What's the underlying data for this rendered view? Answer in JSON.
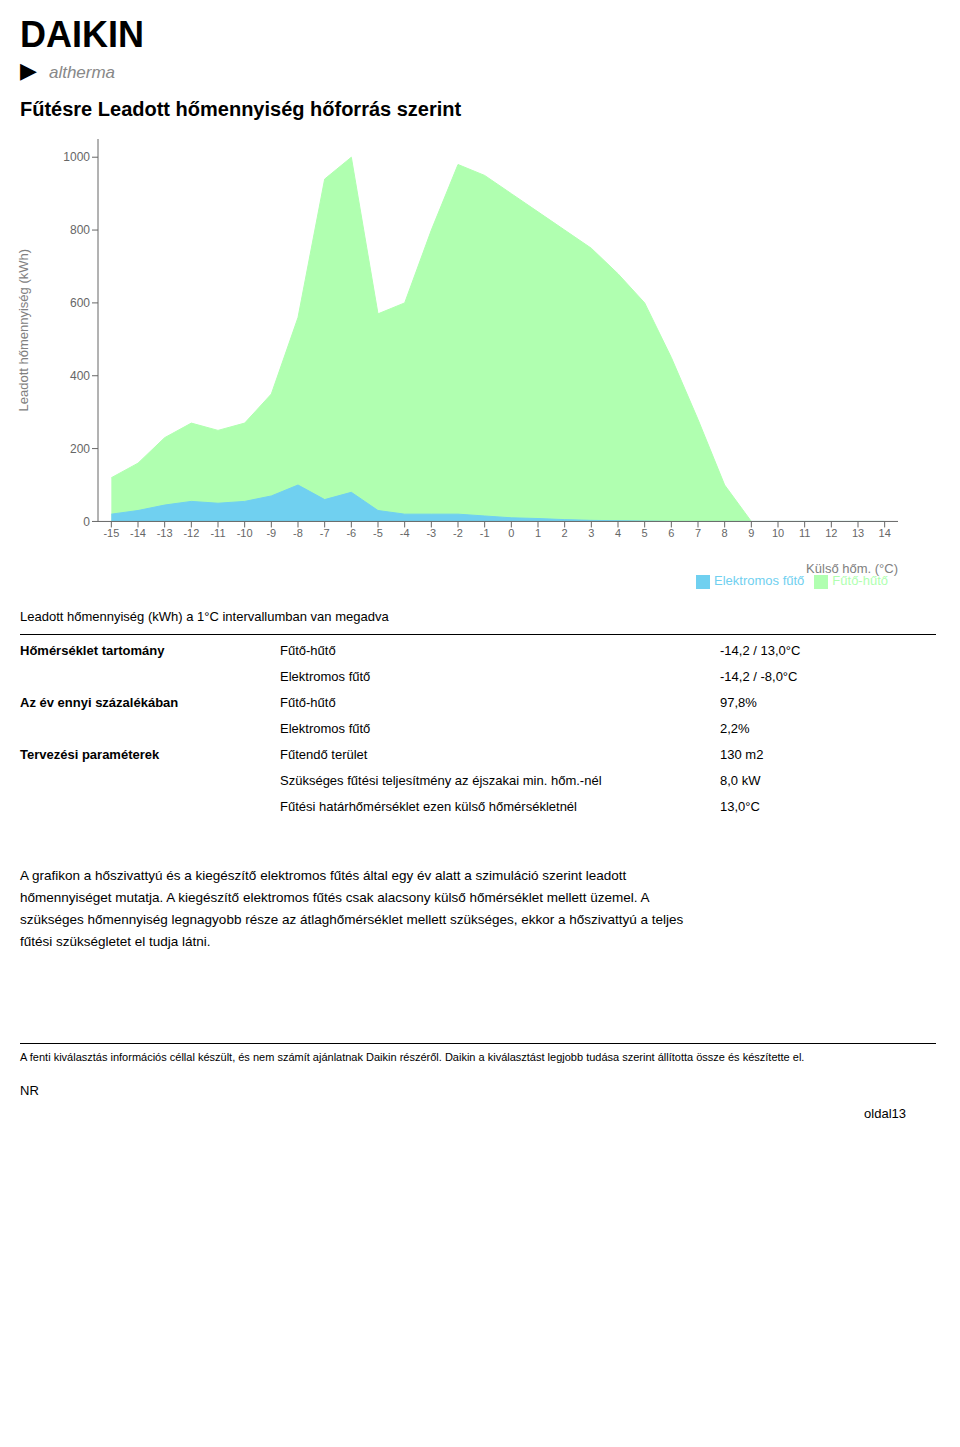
{
  "header": [
    "DAIKIN",
    "▶",
    "altherma"
  ],
  "chart_data": {
    "type": "area",
    "title": "Fűtésre Leadott hőmennyiség hőforrás szerint",
    "xlabel": "Külső hőm. (°C)",
    "ylabel": "Leadott hőmennyiség (kWh)",
    "x": [
      -15,
      -14,
      -13,
      -12,
      -11,
      -10,
      -9,
      -8,
      -7,
      -6,
      -5,
      -4,
      -3,
      -2,
      -1,
      0,
      1,
      2,
      3,
      4,
      5,
      6,
      7,
      8,
      9,
      10,
      11,
      12,
      13,
      14
    ],
    "series": [
      {
        "name": "Fűtő-hűtő",
        "color": "#b0ffb0",
        "values": [
          120,
          160,
          230,
          270,
          250,
          270,
          350,
          560,
          940,
          1000,
          570,
          600,
          800,
          980,
          950,
          900,
          850,
          800,
          750,
          680,
          600,
          450,
          280,
          100,
          0,
          0,
          0,
          0,
          0,
          0
        ]
      },
      {
        "name": "Elektromos fűtő",
        "color": "#70d0f0",
        "values": [
          20,
          30,
          45,
          55,
          50,
          55,
          70,
          100,
          60,
          80,
          30,
          20,
          20,
          20,
          15,
          10,
          8,
          5,
          3,
          2,
          1,
          0,
          0,
          0,
          0,
          0,
          0,
          0,
          0,
          0
        ]
      }
    ],
    "xlim": [
      -15.5,
      14.5
    ],
    "xticks": [
      -15,
      -14,
      -13,
      -12,
      -11,
      -10,
      -9,
      -8,
      -7,
      -6,
      -5,
      -4,
      -3,
      -2,
      -1,
      0,
      1,
      2,
      3,
      4,
      5,
      6,
      7,
      8,
      9,
      10,
      11,
      12,
      13,
      14
    ],
    "ylim": [
      0,
      1050
    ],
    "yticks": [
      0,
      200,
      400,
      600,
      800,
      1000
    ],
    "grid": false,
    "stacked": false,
    "legend": "lower right"
  },
  "note": "Leadott hőmennyiség (kWh) a 1°C intervallumban van megadva",
  "table": [
    [
      "Hőmérséklet tartomány",
      "Fűtő-hűtő",
      "-14,2 / 13,0°C"
    ],
    [
      null,
      "Elektromos fűtő",
      "-14,2 / -8,0°C"
    ],
    [
      "Az év ennyi százalékában",
      "Fűtő-hűtő",
      "97,8%"
    ],
    [
      null,
      "Elektromos fűtő",
      "2,2%"
    ],
    [
      "Tervezési paraméterek",
      "Fűtendő terület",
      "130 m2"
    ],
    [
      null,
      "Szükséges fűtési teljesítmény az éjszakai min. hőm.-nél",
      "8,0 kW"
    ],
    [
      null,
      "Fűtési határhőmérséklet ezen külső hőmérsékletnél",
      "13,0°C"
    ]
  ],
  "footer": [
    "A grafikon a hőszivattyú és a kiegészítő elektromos fűtés által egy év alatt a szimuláció szerint leadott",
    "hőmennyiséget mutatja. A kiegészítő elektromos fűtés csak alacsony külső hőmérséklet mellett üzemel. A",
    "szükséges hőmennyiség legnagyobb része az átlaghőmérséklet mellett szükséges, ekkor a hőszivattyú a teljes",
    "fűtési szükségletet el tudja látni."
  ],
  "disclaimer": "A fenti kiválasztás információs céllal készült, és nem számít ajánlatnak Daikin részéről. Daikin a kiválasztást legjobb tudása szerint állította össze és készítette el.",
  "nr": "NR",
  "page": "oldal13"
}
